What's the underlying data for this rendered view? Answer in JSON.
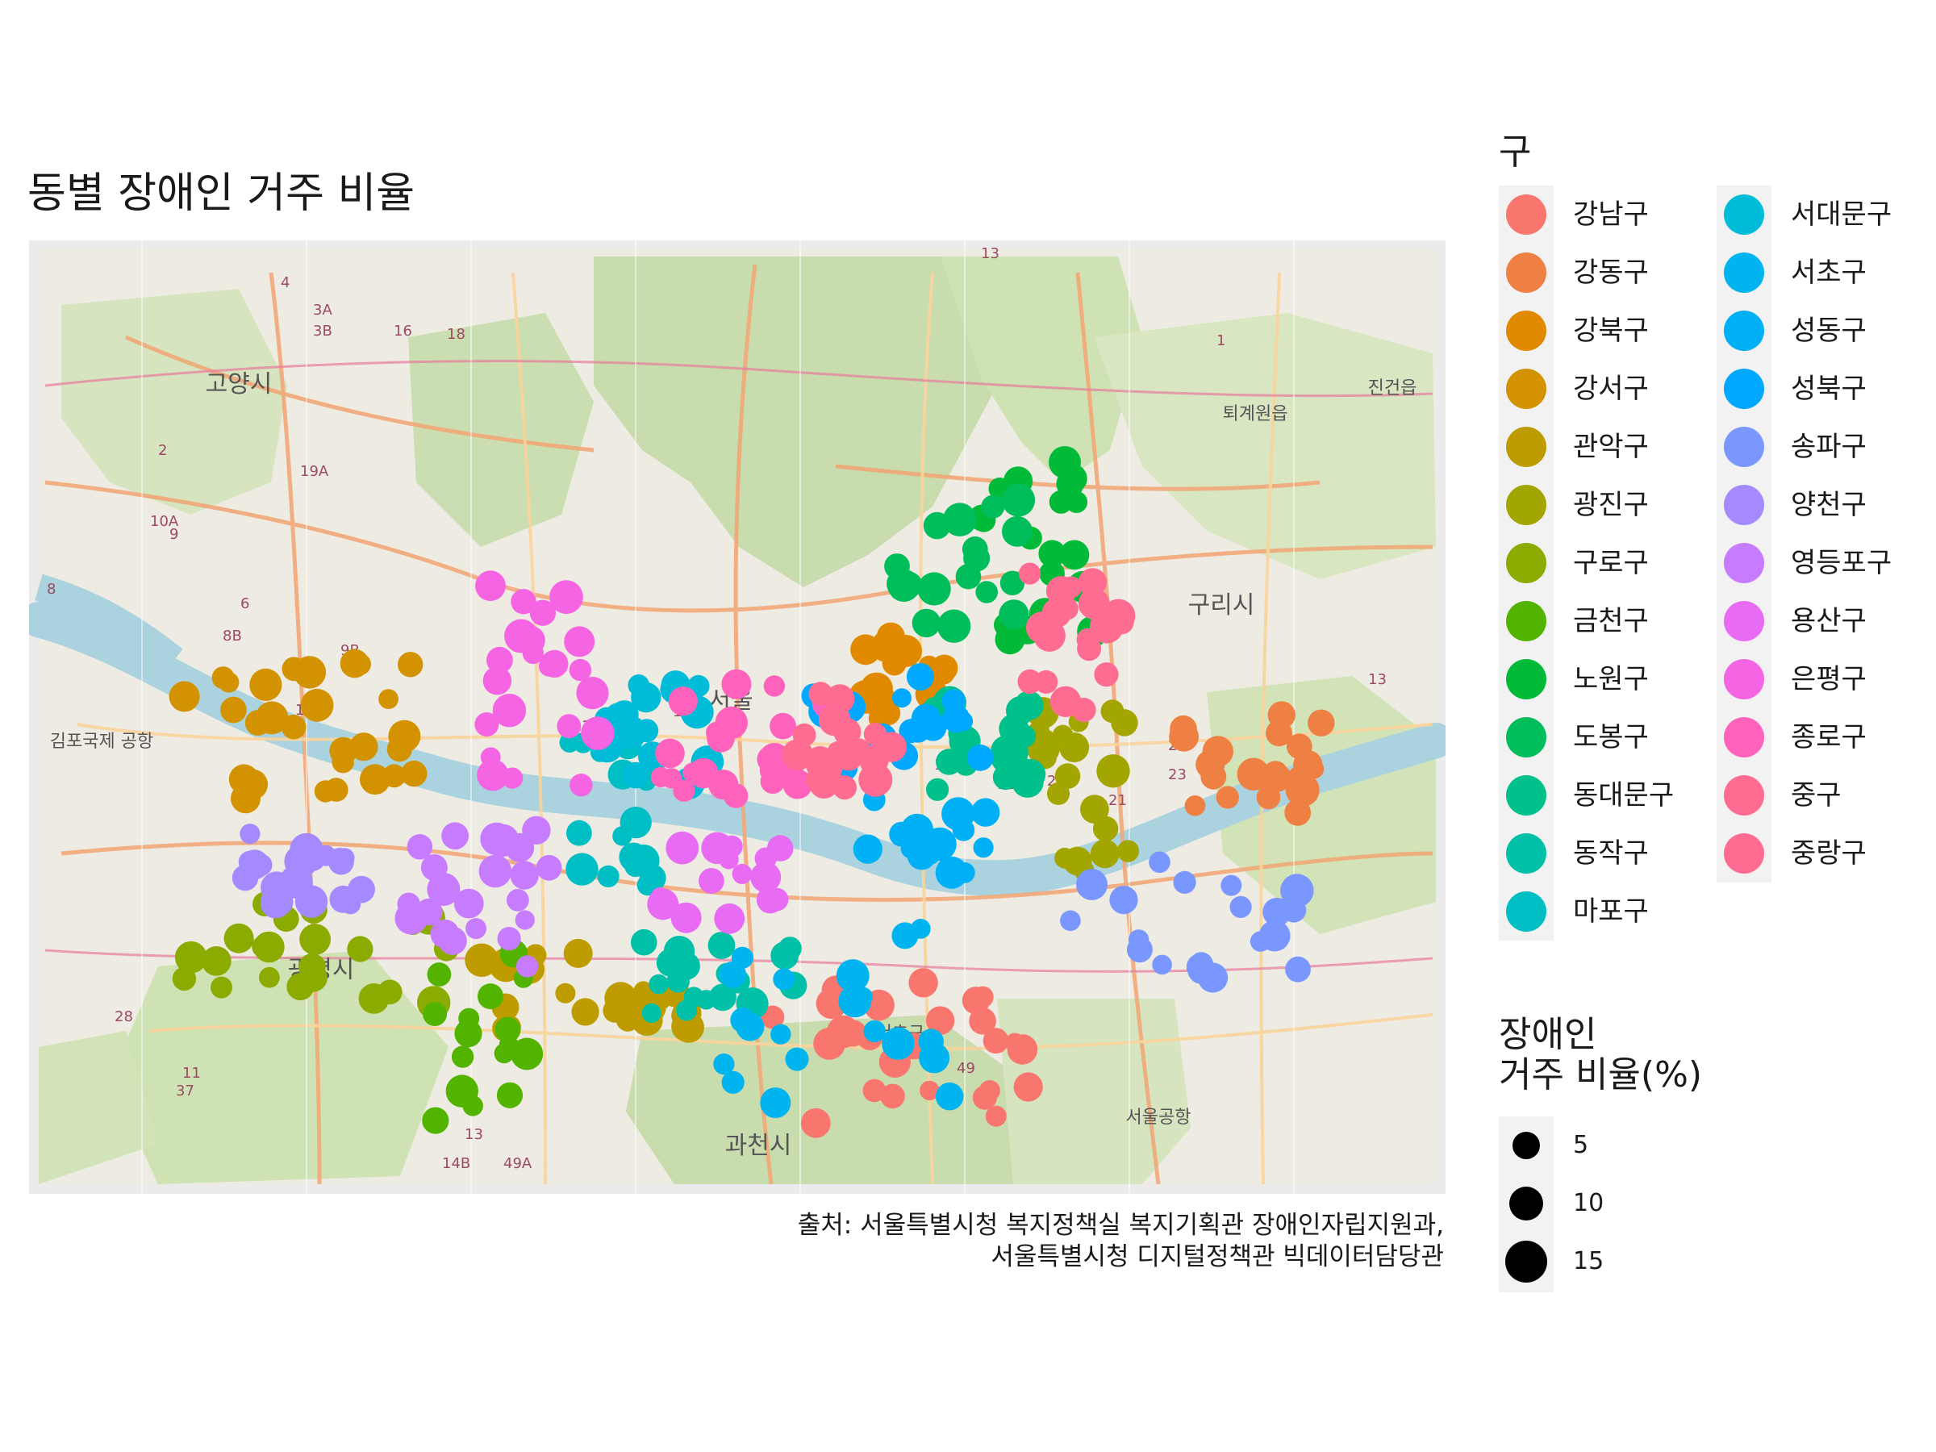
{
  "title": "동별 장애인 거주 비율",
  "caption_lines": [
    "출처: 서울특별시청 복지정책실 복지기획관 장애인자립지원과,",
    "서울특별시청 디지털정책관 빅데이터담당관"
  ],
  "map": {
    "labels": [
      "고양시",
      "서울",
      "구리시",
      "김포국제 공항",
      "광명시",
      "과천시",
      "서울공항",
      "퇴계원읍",
      "진건읍",
      "서초구"
    ],
    "route_numbers": [
      "4",
      "3A",
      "3B",
      "16",
      "18",
      "2",
      "19A",
      "10A",
      "9",
      "8",
      "6",
      "8B",
      "9B",
      "10",
      "11B",
      "12",
      "14",
      "13",
      "15",
      "16",
      "17",
      "18",
      "20",
      "21",
      "23",
      "27",
      "28",
      "11",
      "37",
      "13",
      "14B",
      "49A",
      "49",
      "3",
      "1",
      "13"
    ]
  },
  "legend": {
    "title": "구",
    "districts": [
      {
        "name": "강남구",
        "color": "#F8766D"
      },
      {
        "name": "강동구",
        "color": "#EE8044"
      },
      {
        "name": "강북구",
        "color": "#E18A00"
      },
      {
        "name": "강서구",
        "color": "#D39200"
      },
      {
        "name": "관악구",
        "color": "#BE9C00"
      },
      {
        "name": "광진구",
        "color": "#A3A500"
      },
      {
        "name": "구로구",
        "color": "#8CAB00"
      },
      {
        "name": "금천구",
        "color": "#53B400"
      },
      {
        "name": "노원구",
        "color": "#00BA38"
      },
      {
        "name": "도봉구",
        "color": "#00BD5C"
      },
      {
        "name": "동대문구",
        "color": "#00C08B"
      },
      {
        "name": "동작구",
        "color": "#00C1A7"
      },
      {
        "name": "마포구",
        "color": "#00BFC4"
      },
      {
        "name": "서대문구",
        "color": "#00BCD8"
      },
      {
        "name": "서초구",
        "color": "#00B4EF"
      },
      {
        "name": "성동구",
        "color": "#00B0F6"
      },
      {
        "name": "성북구",
        "color": "#00A9FF"
      },
      {
        "name": "송파구",
        "color": "#7997FF"
      },
      {
        "name": "양천구",
        "color": "#A58AFF"
      },
      {
        "name": "영등포구",
        "color": "#C77CFF"
      },
      {
        "name": "용산구",
        "color": "#E76BF3"
      },
      {
        "name": "은평구",
        "color": "#F564E3"
      },
      {
        "name": "종로구",
        "color": "#FF62BC"
      },
      {
        "name": "중구",
        "color": "#FF6C91"
      },
      {
        "name": "중랑구",
        "color": "#FF6C91"
      }
    ]
  },
  "size_legend": {
    "title": "장애인\n거주 비율(%)",
    "breaks": [
      5,
      10,
      15
    ]
  }
}
